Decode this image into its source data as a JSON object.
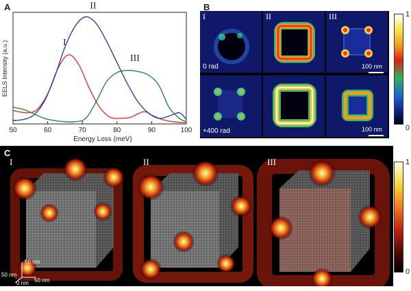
{
  "panel_letters": {
    "a": "A",
    "b": "B",
    "c": "C"
  },
  "chart_data": {
    "type": "line",
    "title": "",
    "xlabel": "Energy Loss (meV)",
    "ylabel": "EELS Intensity (a.u.)",
    "xlim": [
      50,
      100
    ],
    "ylim": [
      0,
      1
    ],
    "xticks": [
      "50",
      "60",
      "70",
      "80",
      "90",
      "100"
    ],
    "grid": false,
    "series": [
      {
        "name": "I",
        "color": "#e03232",
        "x": [
          50,
          54,
          57,
          60,
          63,
          66,
          69,
          72,
          75,
          78,
          81,
          84,
          86,
          88,
          90,
          93,
          96,
          100
        ],
        "y": [
          0.12,
          0.1,
          0.13,
          0.27,
          0.5,
          0.62,
          0.53,
          0.32,
          0.15,
          0.06,
          0.05,
          0.06,
          0.09,
          0.11,
          0.08,
          0.04,
          0.02,
          0.01
        ]
      },
      {
        "name": "II",
        "color": "#2b40a8",
        "x": [
          50,
          53,
          56,
          59,
          62,
          65,
          68,
          71,
          74,
          77,
          80,
          83,
          86,
          89,
          92,
          95,
          98,
          100
        ],
        "y": [
          0.03,
          0.04,
          0.08,
          0.2,
          0.42,
          0.69,
          0.88,
          0.96,
          0.9,
          0.74,
          0.55,
          0.36,
          0.2,
          0.1,
          0.05,
          0.07,
          0.1,
          0.04
        ]
      },
      {
        "name": "III",
        "color": "#2a8a3a",
        "x": [
          50,
          53,
          56,
          59,
          62,
          65,
          68,
          71,
          74,
          77,
          80,
          83,
          86,
          89,
          92,
          95,
          98,
          100
        ],
        "y": [
          0.15,
          0.13,
          0.09,
          0.05,
          0.03,
          0.02,
          0.02,
          0.05,
          0.2,
          0.38,
          0.46,
          0.48,
          0.47,
          0.44,
          0.35,
          0.15,
          0.05,
          0.02
        ]
      }
    ],
    "annotations": [
      "I",
      "II",
      "III"
    ]
  },
  "panel_b": {
    "columns": [
      "I",
      "II",
      "III"
    ],
    "row_labels": [
      "0 rad",
      "+400 rad"
    ],
    "scale_label": "100 nm",
    "colorbar": {
      "max": "1",
      "min": "0"
    }
  },
  "panel_c": {
    "cubes": [
      "I",
      "II",
      "III"
    ],
    "axes": {
      "x": "50 nm",
      "y": "50 nm",
      "z": "50 nm",
      "origin": "0 nm"
    },
    "colorbar": {
      "max": "1",
      "min": "0"
    }
  },
  "colors": {
    "curve_I": "#e03232",
    "curve_II": "#2b40a8",
    "curve_III": "#2a8a3a"
  }
}
